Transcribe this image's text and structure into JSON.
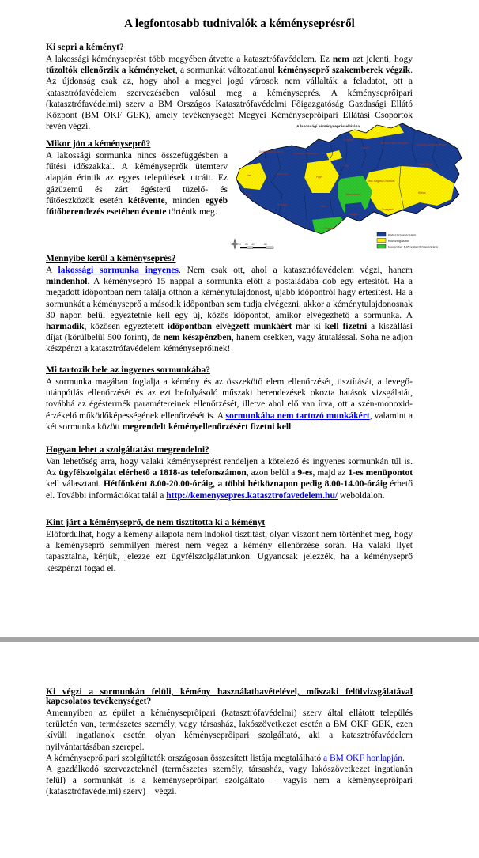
{
  "page": {
    "title": "A legfontosabb tudnivalók a kéményseprésről"
  },
  "colors": {
    "link": "#0000f0",
    "map_blue": "#1b3f94",
    "map_yellow": "#fff200",
    "map_green": "#2fc72f",
    "separator_gray": "#a5a5a5"
  },
  "sections": {
    "s1": {
      "heading": "Ki sepri a kéményt?",
      "para": [
        {
          "t": "A lakossági kéményseprést több megyében átvette a katasztrófavédelem. Ez "
        },
        {
          "t": "nem",
          "b": 1
        },
        {
          "t": " azt jelenti, hogy "
        },
        {
          "t": "tűzoltók ellenőrzik a kéményeket",
          "b": 1
        },
        {
          "t": ", a sormunkát változatlanul "
        },
        {
          "t": "kéményseprő szakemberek végzik",
          "b": 1
        },
        {
          "t": ". Az újdonság csak az, hogy ahol a megyei jogú városok nem vállalták a feladatot, ott a katasztrófavédelem szervezésében valósul meg a kéményseprés. A kéményseprőipari (katasztrófavédelmi) szerv a BM Országos Katasztrófavédelmi Főigazgatóság Gazdasági Ellátó Központ (BM OKF GEK), amely tevékenységét Megyei Kéményseprőipari Ellátási Csoportok révén végzi."
        }
      ]
    },
    "s2": {
      "heading": "Mikor jön a kéményseprő?",
      "para": [
        {
          "t": "A lakossági sormunka nincs összefüggésben a fűtési időszakkal. A kéményseprők ütemterv alapján érintik az egyes települések utcáit. Ez gázüzemű és zárt égésterű tüzelő- és fűtőeszközök esetén "
        },
        {
          "t": "kétévente",
          "b": 1
        },
        {
          "t": ", minden "
        },
        {
          "t": "egyéb fűtőberendezés esetében évente",
          "b": 1
        },
        {
          "t": " történik meg."
        }
      ]
    },
    "s3": {
      "heading": "Mennyibe kerül a kéményseprés?",
      "para": [
        {
          "t": "A "
        },
        {
          "t": "lakossági sormunka ingyenes",
          "b": 1,
          "l": 1
        },
        {
          "t": ". Nem csak ott, ahol a katasztrófavédelem végzi, hanem "
        },
        {
          "t": "mindenhol",
          "b": 1
        },
        {
          "t": ". A kéményseprő 15 nappal a sormunka előtt a postaládába dob egy értesítőt. Ha a megadott időpontban nem találja otthon a kéménytulajdonost, újabb időpontról hagy értesítést. Ha a sormunkát a kéményseprő a második időpontban sem tudja elvégezni, akkor a kéménytulajdonosnak 30 napon belül egyeztetnie kell egy új, közös időpontot, amikor elvégezhető a sormunka. A "
        },
        {
          "t": "harmadik",
          "b": 1
        },
        {
          "t": ", közösen egyeztetett "
        },
        {
          "t": "időpontban elvégzett munkáért",
          "b": 1
        },
        {
          "t": " már ki "
        },
        {
          "t": "kell fizetni",
          "b": 1
        },
        {
          "t": " a kiszállási díjat (körülbelül 500 forint), de "
        },
        {
          "t": "nem készpénzben",
          "b": 1
        },
        {
          "t": ", hanem csekken, vagy átutalással. Soha ne adjon készpénzt a katasztrófavédelem kéményseprőinek!"
        }
      ]
    },
    "s4": {
      "heading": "Mi tartozik bele az ingyenes sormunkába?",
      "para": [
        {
          "t": "A sormunka magában foglalja a kémény és az összekötő elem ellenőrzését, tisztítását, a levegő-utánpótlás ellenőrzését és az ezt befolyásoló műszaki berendezések okozta hatások vizsgálatát, továbbá az égéstermék paramétereinek ellenőrzését, illetve ahol elő van írva, ott a szén-monoxid-érzékelő működőképességének ellenőrzését is. A "
        },
        {
          "t": "sormunkába nem tartozó munkákért",
          "b": 1,
          "l": 1
        },
        {
          "t": ", valamint a két sormunka között "
        },
        {
          "t": "megrendelt kéményellenőrzésért fizetni kell",
          "b": 1
        },
        {
          "t": "."
        }
      ]
    },
    "s5": {
      "heading": "Hogyan lehet a szolgáltatást megrendelni?",
      "para": [
        {
          "t": "Van lehetőség arra, hogy valaki kéményseprést rendeljen a kötelező és ingyenes sormunkán túl is. Az "
        },
        {
          "t": "ügyfélszolgálat elérhető a 1818-as telefonszámon",
          "b": 1
        },
        {
          "t": ", azon belül a "
        },
        {
          "t": "9-es",
          "b": 1
        },
        {
          "t": ", majd az "
        },
        {
          "t": "1-es menüpontot",
          "b": 1
        },
        {
          "t": " kell választani. "
        },
        {
          "t": "Hétfőnként 8.00-20.00-óráig, a többi hétköznapon pedig 8.00-14.00-óráig",
          "b": 1
        },
        {
          "t": " érhető el. További információkat talál a "
        },
        {
          "t": "http://kemenysepres.katasztrofavedelem.hu/",
          "b": 1,
          "l": 1
        },
        {
          "t": " weboldalon."
        }
      ]
    },
    "s6": {
      "heading": "Kint járt a kéményseprő, de nem tisztította ki a kéményt",
      "para": [
        {
          "t": "Előfordulhat, hogy a kémény állapota nem indokol tisztítást, olyan viszont nem történhet meg, hogy a kéményseprő semmilyen mérést nem végez a kémény ellenőrzése során. Ha valaki ilyet tapasztalna, kérjük, jelezze ezt ügyfélszolgálatunkon. Ugyancsak jelezzék, ha a kéményseprő készpénzt fogad el."
        }
      ]
    },
    "s7": {
      "heading": "Ki végzi a sormunkán felüli, kémény használatbavételével, műszaki felülvizsgálatával kapcsolatos tevékenységet?",
      "para1": [
        {
          "t": "Amennyiben az épület a kéményseprőipari (katasztrófavédelmi) szerv által ellátott település területén van, természetes személy, vagy társasház, lakószövetkezet esetén a BM OKF GEK, ezen kívüli ingatlanok esetén olyan kéményseprőipari szolgáltató, aki a katasztrófavédelem nyilvántartásában szerepel."
        }
      ],
      "para2": [
        {
          "t": "A kéményseprőipari szolgáltatók országosan összesített listája megtalálható "
        },
        {
          "t": "a BM OKF honlapján",
          "l": 1
        },
        {
          "t": "."
        }
      ],
      "para3": [
        {
          "t": "A gazdálkodó szervezeteknél (természetes személy, társasház, vagy lakószövetkezet ingatlanán felül) a sormunkát is a kéményseprőipari szolgáltató – vagyis nem a kéményseprőipari (katasztrófavédelmi) szerv) – végzi."
        }
      ]
    }
  },
  "map": {
    "title": "A lakossági kéményseprés ellátása",
    "legend": [
      {
        "label": "Katasztrófavédelem",
        "color": "#1b3f94"
      },
      {
        "label": "Közszolgáltató",
        "color": "#fff200"
      },
      {
        "label": "November 1-től katasztrófavédelem",
        "color": "#2fc72f"
      }
    ],
    "scale": {
      "l0": "0",
      "l1": "20",
      "l2": "40",
      "l3": "80"
    },
    "labels": [
      {
        "t": "Győr-Moson-Sopron"
      },
      {
        "t": "Komárom-Esztergom"
      },
      {
        "t": "Vas"
      },
      {
        "t": "Veszprém"
      },
      {
        "t": "Zala"
      },
      {
        "t": "Somogy"
      },
      {
        "t": "Fejér"
      },
      {
        "t": "Tolna"
      },
      {
        "t": "Baranya"
      },
      {
        "t": "Pest"
      },
      {
        "t": "Nógrád"
      },
      {
        "t": "Heves"
      },
      {
        "t": "Borsod-Abaúj-Zemplén"
      },
      {
        "t": "Szabolcs-Szatmár-Bereg"
      },
      {
        "t": "Hajdú-Bihar"
      },
      {
        "t": "Jász-Nagykun-Szolnok"
      },
      {
        "t": "Békés"
      },
      {
        "t": "Csongrád"
      },
      {
        "t": "Bács-Kiskun"
      },
      {
        "t": "Szeged"
      }
    ]
  }
}
